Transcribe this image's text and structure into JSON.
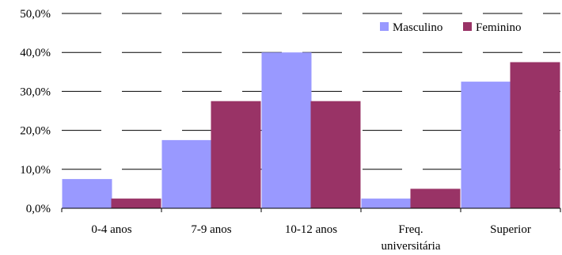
{
  "chart_data": {
    "type": "bar",
    "categories": [
      "0-4 anos",
      "7-9 anos",
      "10-12 anos",
      "Freq. universitária",
      "Superior"
    ],
    "category_lines": [
      [
        "0-4 anos"
      ],
      [
        "7-9 anos"
      ],
      [
        "10-12 anos"
      ],
      [
        "Freq.",
        "universitária"
      ],
      [
        "Superior"
      ]
    ],
    "series": [
      {
        "name": "Masculino",
        "color": "#9999ff",
        "values": [
          7.5,
          17.5,
          40.0,
          2.5,
          32.5
        ]
      },
      {
        "name": "Feminino",
        "color": "#993366",
        "values": [
          2.5,
          27.5,
          27.5,
          5.0,
          37.5
        ]
      }
    ],
    "y_ticks": [
      "0,0%",
      "10,0%",
      "20,0%",
      "30,0%",
      "40,0%",
      "50,0%"
    ],
    "ylim": [
      0,
      50
    ],
    "gridlines": "dashed horizontal",
    "legend_position": "top-right"
  }
}
